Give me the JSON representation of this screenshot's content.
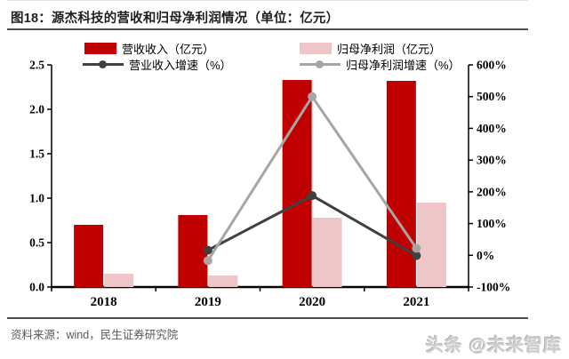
{
  "header": {
    "title": "图18：源杰科技的营收和归母净利润情况（单位：亿元）"
  },
  "chart_data": {
    "type": "bar+line",
    "title": "源杰科技的营收和归母净利润情况",
    "unit": "亿元",
    "categories": [
      "2018",
      "2019",
      "2020",
      "2021"
    ],
    "series": [
      {
        "key": "revenue",
        "name": "营收收入（亿元）",
        "type": "bar",
        "axis": "left",
        "color": "#c00000",
        "values": [
          0.7,
          0.81,
          2.33,
          2.32
        ]
      },
      {
        "key": "net-profit",
        "name": "归母净利润（亿元）",
        "type": "bar",
        "axis": "left",
        "color": "#eec6c7",
        "values": [
          0.15,
          0.13,
          0.78,
          0.95
        ]
      },
      {
        "key": "revenue-growth",
        "name": "营业收入增速（%）",
        "type": "line",
        "axis": "right",
        "color": "#404040",
        "values": [
          null,
          16,
          188,
          -1
        ]
      },
      {
        "key": "net-profit-growth",
        "name": "归母净利润增速（%）",
        "type": "line",
        "axis": "right",
        "color": "#a6a6a6",
        "values": [
          null,
          -17,
          500,
          22
        ]
      }
    ],
    "left_axis": {
      "min": 0,
      "max": 2.5,
      "step": 0.5,
      "ticks": [
        "0.0",
        "0.5",
        "1.0",
        "1.5",
        "2.0",
        "2.5"
      ]
    },
    "right_axis": {
      "min": -100,
      "max": 600,
      "step": 100,
      "ticks": [
        "-100%",
        "0%",
        "100%",
        "200%",
        "300%",
        "400%",
        "500%",
        "600%"
      ]
    },
    "grid": false,
    "legend_position": "top"
  },
  "footer": {
    "source_label": "资料来源：wind，民生证券研究院",
    "watermark": "头条 @未来智库"
  }
}
